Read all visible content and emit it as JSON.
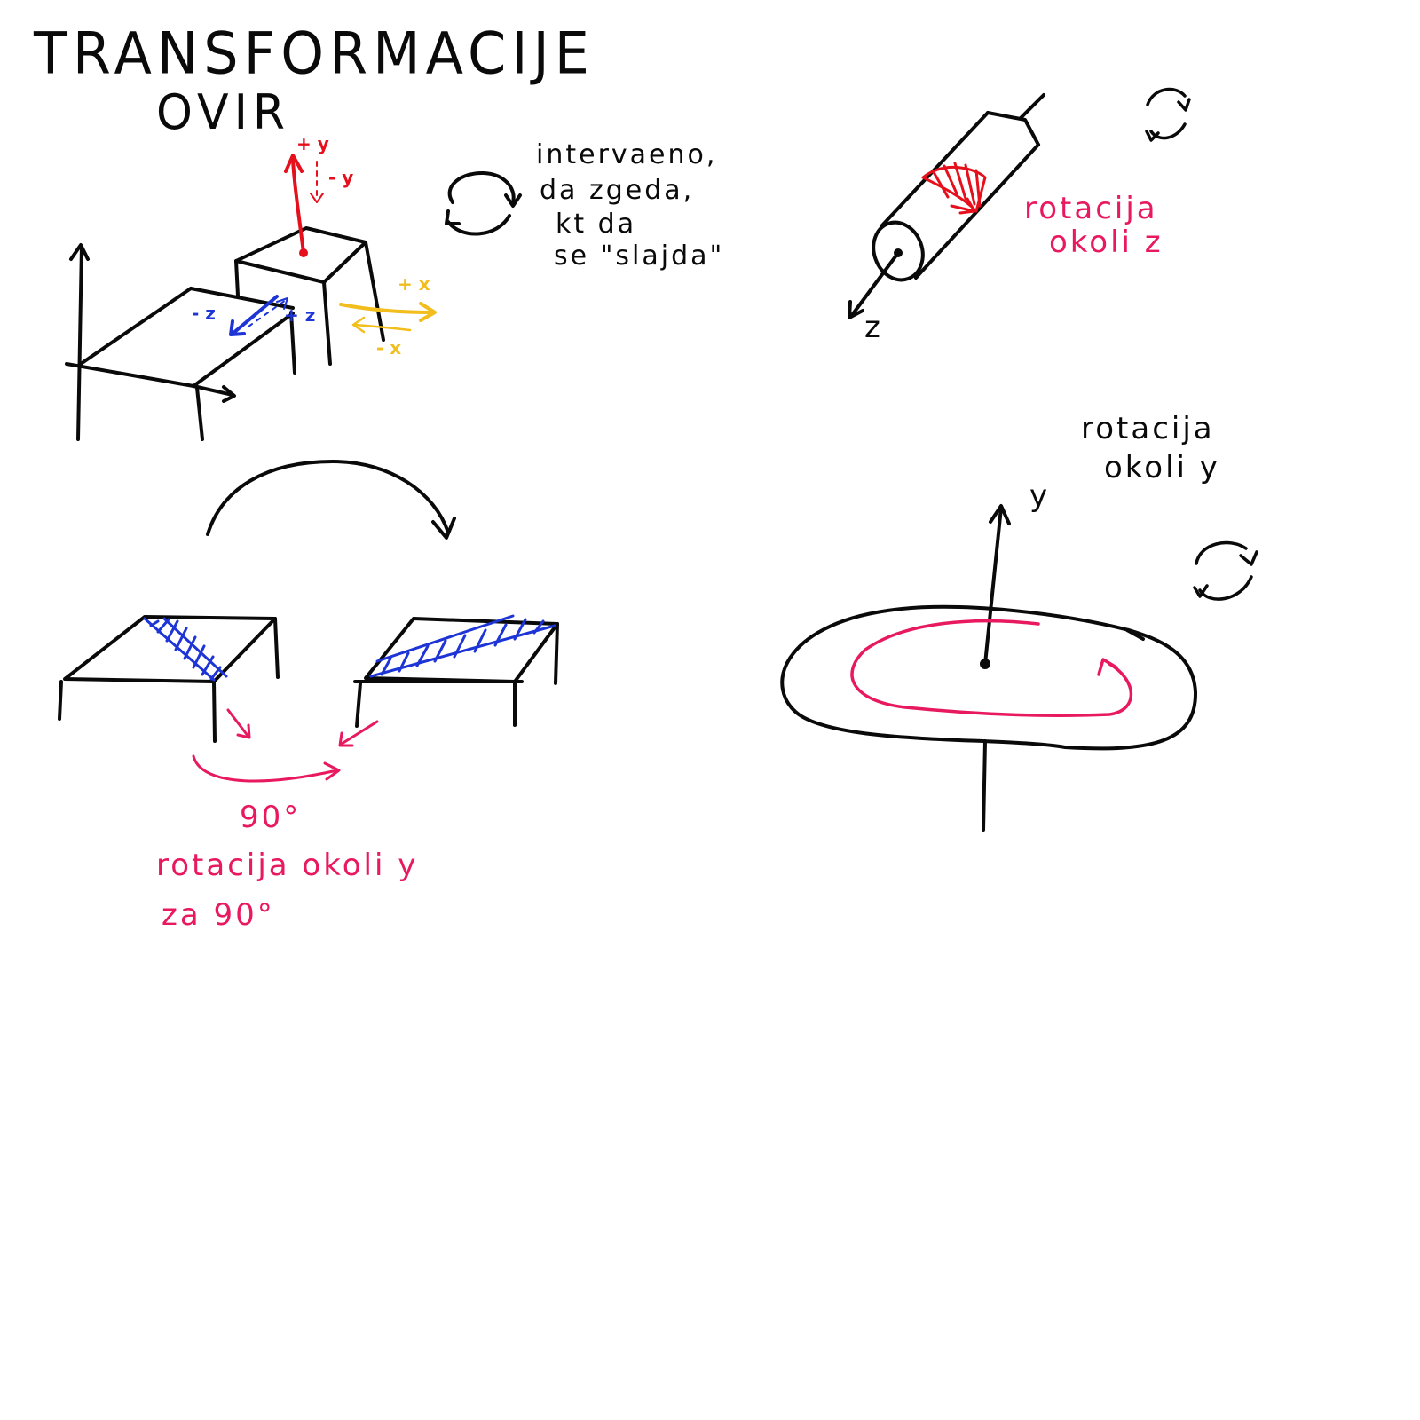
{
  "title": {
    "line1": "TRANSFORMACIJE",
    "line2": "OVIR"
  },
  "colors": {
    "ink": "#0a0a0a",
    "red": "#e5101b",
    "blue": "#1d34d6",
    "yellow": "#f1be1d",
    "pink": "#e8195e"
  },
  "axis_labels": {
    "plus_y": "+ y",
    "minus_y": "- y",
    "minus_z": "- z",
    "plus_z": "+ z",
    "plus_x": "+ x",
    "minus_x": "- x"
  },
  "note": {
    "line1": "intervaeno,",
    "line2": "da zgeda,",
    "line3": "kt da",
    "line4": "se \"slajda\""
  },
  "cylinder": {
    "axis_label": "z",
    "caption_line1": "rotacija",
    "caption_line2": "okoli z"
  },
  "disc": {
    "axis_label": "y",
    "caption_line1": "rotacija",
    "caption_line2": "okoli y"
  },
  "tables": {
    "angle": "90°",
    "caption_line1": "rotacija okoli y",
    "caption_line2": "za 90°"
  },
  "icons": [
    "rotate-icon",
    "rotate-icon",
    "rotate-icon"
  ]
}
